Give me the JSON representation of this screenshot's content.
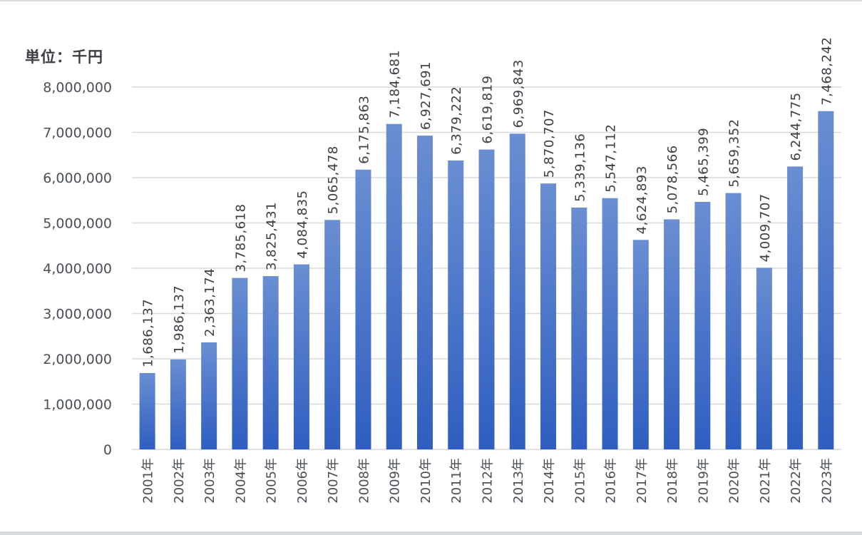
{
  "chart_data": {
    "type": "bar",
    "unit_label": "単位：千円",
    "categories": [
      "2001年",
      "2002年",
      "2003年",
      "2004年",
      "2005年",
      "2006年",
      "2007年",
      "2008年",
      "2009年",
      "2010年",
      "2011年",
      "2012年",
      "2013年",
      "2014年",
      "2015年",
      "2016年",
      "2017年",
      "2018年",
      "2019年",
      "2020年",
      "2021年",
      "2022年",
      "2023年"
    ],
    "values": [
      1686137,
      1986137,
      2363174,
      3785618,
      3825431,
      4084835,
      5065478,
      6175863,
      7184681,
      6927691,
      6379222,
      6619819,
      6969843,
      5870707,
      5339136,
      5547112,
      4624893,
      5078566,
      5465399,
      5659352,
      4009707,
      6244775,
      7468242
    ],
    "data_labels": [
      "1,686,137",
      "1,986,137",
      "2,363,174",
      "3,785,618",
      "3,825,431",
      "4,084,835",
      "5,065,478",
      "6,175,863",
      "7,184,681",
      "6,927,691",
      "6,379,222",
      "6,619,819",
      "6,969,843",
      "5,870,707",
      "5,339,136",
      "5,547,112",
      "4,624,893",
      "5,078,566",
      "5,465,399",
      "5,659,352",
      "4,009,707",
      "6,244,775",
      "7,468,242"
    ],
    "y_ticks": [
      0,
      1000000,
      2000000,
      3000000,
      4000000,
      5000000,
      6000000,
      7000000,
      8000000
    ],
    "y_tick_labels": [
      "0",
      "1,000,000",
      "2,000,000",
      "3,000,000",
      "4,000,000",
      "5,000,000",
      "6,000,000",
      "7,000,000",
      "8,000,000"
    ],
    "ylim": [
      0,
      8000000
    ],
    "grid": true,
    "legend": "none",
    "colors": {
      "bar_top": "#6a8ed2",
      "bar_bottom": "#2f5ec0",
      "grid": "#d9d9d9",
      "text": "#4a4f55"
    }
  }
}
